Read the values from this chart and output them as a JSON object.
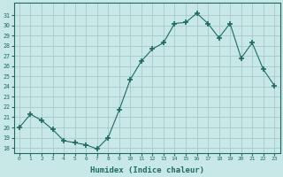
{
  "x": [
    0,
    1,
    2,
    3,
    4,
    5,
    6,
    7,
    8,
    9,
    10,
    11,
    12,
    13,
    14,
    15,
    16,
    17,
    18,
    19,
    20,
    21,
    22,
    23
  ],
  "y": [
    20,
    21.3,
    20.7,
    19.8,
    18.7,
    18.5,
    18.3,
    17.9,
    19.0,
    21.7,
    24.7,
    26.5,
    27.7,
    28.3,
    30.2,
    30.3,
    31.2,
    30.2,
    28.8,
    30.2,
    26.8,
    28.3,
    25.7,
    24.1
  ],
  "line_color": "#1e6b5e",
  "marker": "+",
  "marker_size": 4,
  "bg_color": "#c8e8e8",
  "grid_color": "#a8c8c8",
  "xlabel": "Humidex (Indice chaleur)",
  "ylim": [
    17.5,
    32.2
  ],
  "yticks": [
    18,
    19,
    20,
    21,
    22,
    23,
    24,
    25,
    26,
    27,
    28,
    29,
    30,
    31
  ],
  "xticks": [
    0,
    1,
    2,
    3,
    4,
    5,
    6,
    7,
    8,
    9,
    10,
    11,
    12,
    13,
    14,
    15,
    16,
    17,
    18,
    19,
    20,
    21,
    22,
    23
  ],
  "xlabel_color": "#1e6b5e",
  "tick_color": "#1e6b5e",
  "spine_color": "#1e6b5e"
}
